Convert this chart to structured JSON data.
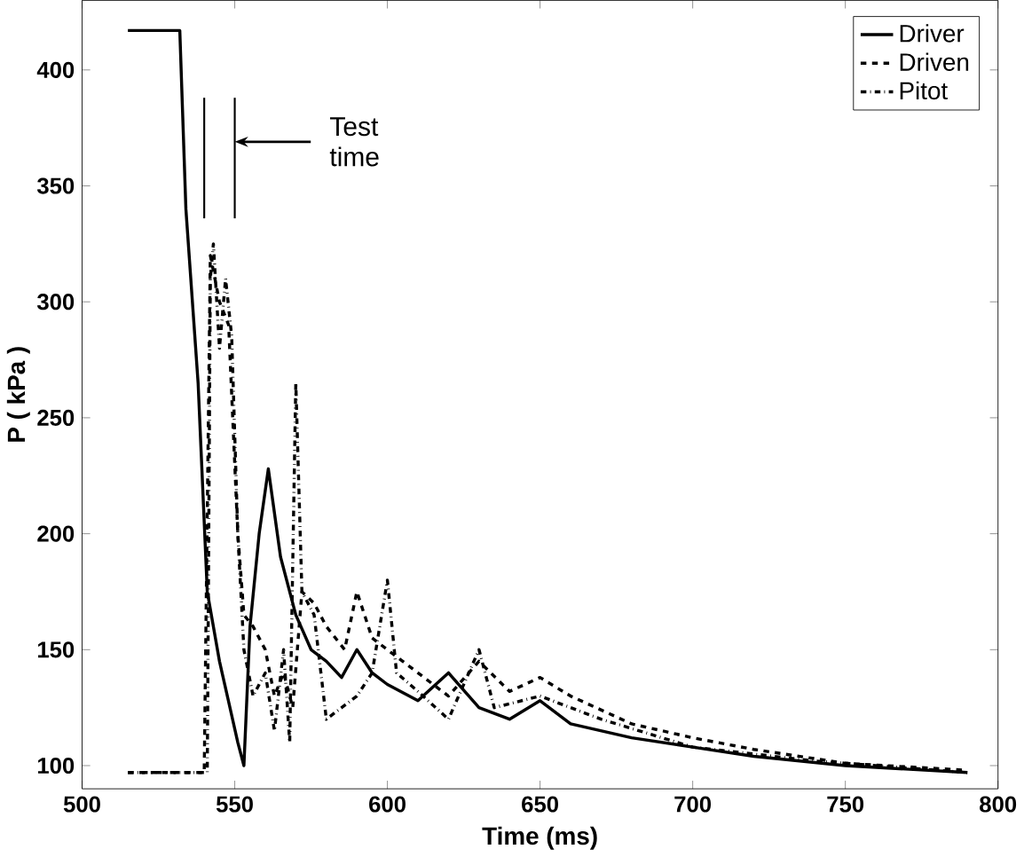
{
  "chart_data": {
    "type": "line",
    "xlabel": "Time (ms)",
    "ylabel": "P ( kPa )",
    "xlim": [
      500,
      800
    ],
    "ylim": [
      90,
      430
    ],
    "xticks": [
      500,
      550,
      600,
      650,
      700,
      750,
      800
    ],
    "yticks": [
      100,
      150,
      200,
      250,
      300,
      350,
      400
    ],
    "legend": "top right",
    "grid": false,
    "marker": "none",
    "series": [
      {
        "name": "Driver",
        "color": "#000000",
        "line_style": "solid",
        "x": [
          515,
          532,
          534,
          538,
          541,
          545,
          551,
          553,
          555,
          558,
          561,
          565,
          570,
          575,
          580,
          585,
          590,
          595,
          600,
          610,
          620,
          630,
          640,
          650,
          660,
          680,
          700,
          720,
          750,
          790
        ],
        "values": [
          417,
          417,
          340,
          265,
          175,
          145,
          110,
          100,
          160,
          200,
          228,
          190,
          165,
          150,
          145,
          138,
          150,
          140,
          135,
          128,
          140,
          125,
          120,
          128,
          118,
          112,
          108,
          104,
          100,
          97
        ]
      },
      {
        "name": "Driven",
        "color": "#000000",
        "line_style": "dashed",
        "x": [
          515,
          540,
          542,
          545,
          548,
          551,
          553,
          556,
          560,
          563,
          566,
          569,
          572,
          576,
          580,
          586,
          590,
          595,
          600,
          610,
          620,
          630,
          640,
          650,
          660,
          680,
          700,
          720,
          750,
          790
        ],
        "values": [
          97,
          97,
          320,
          300,
          290,
          200,
          165,
          160,
          150,
          130,
          140,
          125,
          175,
          170,
          160,
          150,
          175,
          155,
          150,
          140,
          130,
          145,
          132,
          138,
          130,
          118,
          112,
          107,
          101,
          98
        ]
      },
      {
        "name": "Pitot",
        "color": "#000000",
        "line_style": "dashdot",
        "x": [
          515,
          541,
          542,
          543,
          545,
          547,
          549,
          551,
          553,
          556,
          560,
          563,
          566,
          568,
          570,
          572,
          576,
          580,
          585,
          590,
          595,
          600,
          603,
          610,
          620,
          630,
          635,
          650,
          670,
          700,
          740,
          790
        ],
        "values": [
          97,
          97,
          310,
          325,
          280,
          310,
          285,
          200,
          150,
          130,
          140,
          115,
          150,
          110,
          265,
          175,
          165,
          120,
          125,
          130,
          140,
          180,
          140,
          132,
          120,
          150,
          125,
          130,
          120,
          108,
          102,
          97
        ]
      }
    ],
    "ref_lines": [
      {
        "axis": "x",
        "value": 540
      },
      {
        "axis": "x",
        "value": 550
      }
    ],
    "annotations": [
      "Test time"
    ]
  }
}
